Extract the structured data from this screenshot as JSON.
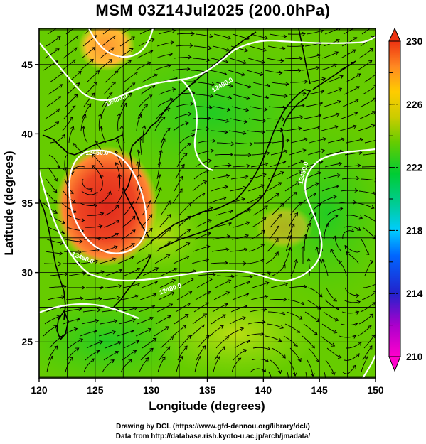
{
  "title": "MSM 03Z14Jul2025 (200.0hPa)",
  "x_axis": {
    "label": "Longitude (degrees)",
    "ticks": [
      "120",
      "125",
      "130",
      "135",
      "140",
      "145",
      "150"
    ],
    "range": [
      120,
      150
    ]
  },
  "y_axis": {
    "label": "Latitude  (degrees)",
    "ticks": [
      "25",
      "30",
      "35",
      "40",
      "45"
    ],
    "range": [
      22.4,
      47.6
    ]
  },
  "colorbar": {
    "ticks": [
      "230",
      "226",
      "222",
      "218",
      "214",
      "210"
    ],
    "range": [
      210,
      230
    ]
  },
  "contour_labels": [
    "12480.0",
    "12480.0",
    "12480.0",
    "12450.0",
    "12450.0",
    "12480.0"
  ],
  "credits": {
    "line1": "Drawing by DCL (https://www.gfd-dennou.org/library/dcl/)",
    "line2": "Data from http://database.rish.kyoto-u.ac.jp/arch/jmadata/"
  },
  "colors": {
    "background_field": "#66cc00",
    "warm_core": "#ee3322",
    "contour": "#ffffff",
    "streamline": "#000000"
  }
}
